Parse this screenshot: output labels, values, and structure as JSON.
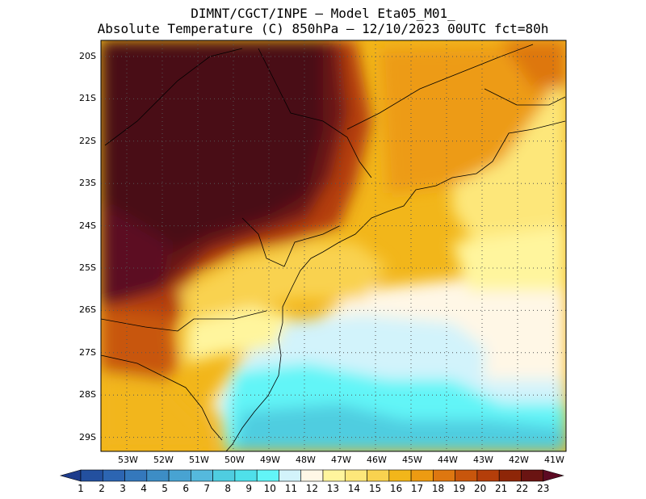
{
  "title": {
    "line1": "DIMNT/CGCT/INPE —  Model Eta05_M01_",
    "line2": "Absolute Temperature (C) 850hPa —  12/10/2023 00UTC fct=80h"
  },
  "axes": {
    "lat_labels": [
      "20S",
      "21S",
      "22S",
      "23S",
      "24S",
      "25S",
      "26S",
      "27S",
      "28S",
      "29S"
    ],
    "lon_labels": [
      "53W",
      "52W",
      "51W",
      "50W",
      "49W",
      "48W",
      "47W",
      "46W",
      "45W",
      "44W",
      "43W",
      "42W",
      "41W"
    ]
  },
  "colorbar": {
    "labels": [
      "1",
      "2",
      "3",
      "4",
      "5",
      "6",
      "7",
      "8",
      "9",
      "10",
      "11",
      "12",
      "13",
      "14",
      "15",
      "16",
      "17",
      "18",
      "19",
      "20",
      "21",
      "22",
      "23"
    ],
    "colors": [
      "#1e3c8c",
      "#23509f",
      "#2c65b2",
      "#3478bc",
      "#3d8dc5",
      "#48a3d2",
      "#55b9dd",
      "#4fcde0",
      "#4fe0ea",
      "#62f5f7",
      "#d2f3fb",
      "#fff7e6",
      "#fff59d",
      "#fde77a",
      "#f9d24f",
      "#f2b61a",
      "#ed9b12",
      "#de7710",
      "#c8560c",
      "#b43e0a",
      "#8e2608",
      "#6a1412",
      "#5c0a23"
    ]
  }
}
